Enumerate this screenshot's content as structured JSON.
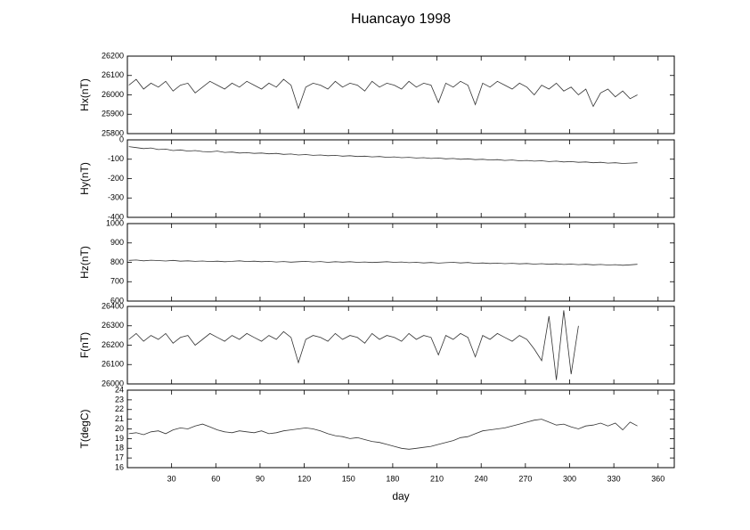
{
  "chart_data": [
    {
      "type": "line",
      "title": "Huancayo 1998",
      "ylabel": "Hx(nT)",
      "color": "#333333",
      "xlim": [
        0,
        371
      ],
      "ylim": [
        25800,
        26200
      ],
      "yticks": [
        25800,
        25900,
        26000,
        26100,
        26200
      ],
      "x": [
        1,
        6,
        11,
        16,
        21,
        26,
        31,
        36,
        41,
        46,
        51,
        56,
        61,
        66,
        71,
        76,
        81,
        86,
        91,
        96,
        101,
        106,
        111,
        116,
        121,
        126,
        131,
        136,
        141,
        146,
        151,
        156,
        161,
        166,
        171,
        176,
        181,
        186,
        191,
        196,
        201,
        206,
        211,
        216,
        221,
        226,
        231,
        236,
        241,
        246,
        251,
        256,
        261,
        266,
        271,
        276,
        281,
        286,
        291,
        296,
        301,
        306,
        311,
        316,
        321,
        326,
        331,
        336,
        341,
        346
      ],
      "values": [
        26050,
        26080,
        26030,
        26060,
        26040,
        26070,
        26020,
        26050,
        26060,
        26010,
        26040,
        26070,
        26050,
        26030,
        26060,
        26040,
        26070,
        26050,
        26030,
        26060,
        26040,
        26080,
        26050,
        25930,
        26040,
        26060,
        26050,
        26030,
        26070,
        26040,
        26060,
        26050,
        26020,
        26070,
        26040,
        26060,
        26050,
        26030,
        26070,
        26040,
        26060,
        26050,
        25960,
        26060,
        26040,
        26070,
        26050,
        25950,
        26060,
        26040,
        26070,
        26050,
        26030,
        26060,
        26040,
        26000,
        26050,
        26030,
        26060,
        26020,
        26040,
        26000,
        26030,
        25940,
        26010,
        26030,
        25990,
        26020,
        25980,
        26000
      ]
    },
    {
      "type": "line",
      "ylabel": "Hy(nT)",
      "color": "#333333",
      "xlim": [
        0,
        371
      ],
      "ylim": [
        -400,
        0
      ],
      "yticks": [
        -400,
        -300,
        -200,
        -100,
        0
      ],
      "x": [
        1,
        6,
        11,
        16,
        21,
        26,
        31,
        36,
        41,
        46,
        51,
        56,
        61,
        66,
        71,
        76,
        81,
        86,
        91,
        96,
        101,
        106,
        111,
        116,
        121,
        126,
        131,
        136,
        141,
        146,
        151,
        156,
        161,
        166,
        171,
        176,
        181,
        186,
        191,
        196,
        201,
        206,
        211,
        216,
        221,
        226,
        231,
        236,
        241,
        246,
        251,
        256,
        261,
        266,
        271,
        276,
        281,
        286,
        291,
        296,
        301,
        306,
        311,
        316,
        321,
        326,
        331,
        336,
        341,
        346
      ],
      "values": [
        -35,
        -40,
        -45,
        -42,
        -50,
        -48,
        -55,
        -52,
        -58,
        -55,
        -60,
        -62,
        -58,
        -65,
        -63,
        -68,
        -66,
        -70,
        -68,
        -72,
        -70,
        -75,
        -73,
        -78,
        -76,
        -80,
        -78,
        -82,
        -80,
        -84,
        -82,
        -86,
        -84,
        -88,
        -86,
        -90,
        -88,
        -92,
        -90,
        -94,
        -92,
        -96,
        -94,
        -98,
        -96,
        -100,
        -98,
        -102,
        -100,
        -104,
        -102,
        -106,
        -104,
        -108,
        -106,
        -110,
        -108,
        -112,
        -110,
        -114,
        -112,
        -116,
        -114,
        -118,
        -116,
        -120,
        -118,
        -122,
        -120,
        -118
      ]
    },
    {
      "type": "line",
      "ylabel": "Hz(nT)",
      "color": "#333333",
      "xlim": [
        0,
        371
      ],
      "ylim": [
        600,
        1000
      ],
      "yticks": [
        600,
        700,
        800,
        900,
        1000
      ],
      "x": [
        1,
        6,
        11,
        16,
        21,
        26,
        31,
        36,
        41,
        46,
        51,
        56,
        61,
        66,
        71,
        76,
        81,
        86,
        91,
        96,
        101,
        106,
        111,
        116,
        121,
        126,
        131,
        136,
        141,
        146,
        151,
        156,
        161,
        166,
        171,
        176,
        181,
        186,
        191,
        196,
        201,
        206,
        211,
        216,
        221,
        226,
        231,
        236,
        241,
        246,
        251,
        256,
        261,
        266,
        271,
        276,
        281,
        286,
        291,
        296,
        301,
        306,
        311,
        316,
        321,
        326,
        331,
        336,
        341,
        346
      ],
      "values": [
        810,
        812,
        808,
        811,
        809,
        807,
        810,
        806,
        808,
        805,
        807,
        804,
        806,
        803,
        805,
        808,
        804,
        806,
        803,
        805,
        802,
        804,
        801,
        803,
        805,
        802,
        804,
        800,
        803,
        801,
        803,
        800,
        802,
        799,
        801,
        803,
        800,
        802,
        798,
        800,
        797,
        799,
        796,
        798,
        800,
        797,
        799,
        795,
        797,
        794,
        796,
        793,
        795,
        792,
        794,
        791,
        793,
        790,
        792,
        789,
        791,
        788,
        790,
        787,
        789,
        786,
        788,
        785,
        787,
        790
      ]
    },
    {
      "type": "line",
      "ylabel": "F(nT)",
      "color": "#333333",
      "xlim": [
        0,
        371
      ],
      "ylim": [
        26000,
        26400
      ],
      "yticks": [
        26000,
        26100,
        26200,
        26300,
        26400
      ],
      "x": [
        1,
        6,
        11,
        16,
        21,
        26,
        31,
        36,
        41,
        46,
        51,
        56,
        61,
        66,
        71,
        76,
        81,
        86,
        91,
        96,
        101,
        106,
        111,
        116,
        121,
        126,
        131,
        136,
        141,
        146,
        151,
        156,
        161,
        166,
        171,
        176,
        181,
        186,
        191,
        196,
        201,
        206,
        211,
        216,
        221,
        226,
        231,
        236,
        241,
        246,
        251,
        256,
        261,
        266,
        271,
        276,
        281,
        286,
        291,
        296,
        301,
        306,
        311,
        316,
        321,
        326,
        331,
        336,
        341,
        346
      ],
      "values": [
        26230,
        26260,
        26220,
        26250,
        26230,
        26260,
        26210,
        26240,
        26250,
        26200,
        26230,
        26260,
        26240,
        26220,
        26250,
        26230,
        26260,
        26240,
        26220,
        26250,
        26230,
        26270,
        26240,
        26110,
        26230,
        26250,
        26240,
        26220,
        26260,
        26230,
        26250,
        26240,
        26210,
        26260,
        26230,
        26250,
        26240,
        26220,
        26260,
        26230,
        26250,
        26240,
        26150,
        26250,
        26230,
        26260,
        26240,
        26140,
        26250,
        26230,
        26260,
        26240,
        26220,
        26250,
        26230,
        26180,
        26120,
        26350,
        26020,
        26380,
        26050,
        26300,
        null,
        null,
        null,
        null,
        null,
        null,
        null,
        null
      ]
    },
    {
      "type": "line",
      "ylabel": "T(degC)",
      "xlabel": "day",
      "color": "#333333",
      "xlim": [
        0,
        371
      ],
      "ylim": [
        16,
        24
      ],
      "yticks": [
        16,
        17,
        18,
        19,
        20,
        21,
        22,
        23,
        24
      ],
      "xticks": [
        30,
        60,
        90,
        120,
        150,
        180,
        210,
        240,
        270,
        300,
        330,
        360
      ],
      "x": [
        1,
        6,
        11,
        16,
        21,
        26,
        31,
        36,
        41,
        46,
        51,
        56,
        61,
        66,
        71,
        76,
        81,
        86,
        91,
        96,
        101,
        106,
        111,
        116,
        121,
        126,
        131,
        136,
        141,
        146,
        151,
        156,
        161,
        166,
        171,
        176,
        181,
        186,
        191,
        196,
        201,
        206,
        211,
        216,
        221,
        226,
        231,
        236,
        241,
        246,
        251,
        256,
        261,
        266,
        271,
        276,
        281,
        286,
        291,
        296,
        301,
        306,
        311,
        316,
        321,
        326,
        331,
        336,
        341,
        346
      ],
      "values": [
        19.5,
        19.6,
        19.4,
        19.7,
        19.8,
        19.5,
        19.9,
        20.1,
        20.0,
        20.3,
        20.5,
        20.2,
        19.9,
        19.7,
        19.6,
        19.8,
        19.7,
        19.6,
        19.8,
        19.5,
        19.6,
        19.8,
        19.9,
        20.0,
        20.1,
        20.0,
        19.8,
        19.5,
        19.3,
        19.2,
        19.0,
        19.1,
        18.9,
        18.7,
        18.6,
        18.4,
        18.2,
        18.0,
        17.9,
        18.0,
        18.1,
        18.2,
        18.4,
        18.6,
        18.8,
        19.1,
        19.2,
        19.5,
        19.8,
        19.9,
        20.0,
        20.1,
        20.3,
        20.5,
        20.7,
        20.9,
        21.0,
        20.7,
        20.4,
        20.5,
        20.2,
        20.0,
        20.3,
        20.4,
        20.6,
        20.3,
        20.6,
        19.9,
        20.7,
        20.3
      ]
    }
  ]
}
